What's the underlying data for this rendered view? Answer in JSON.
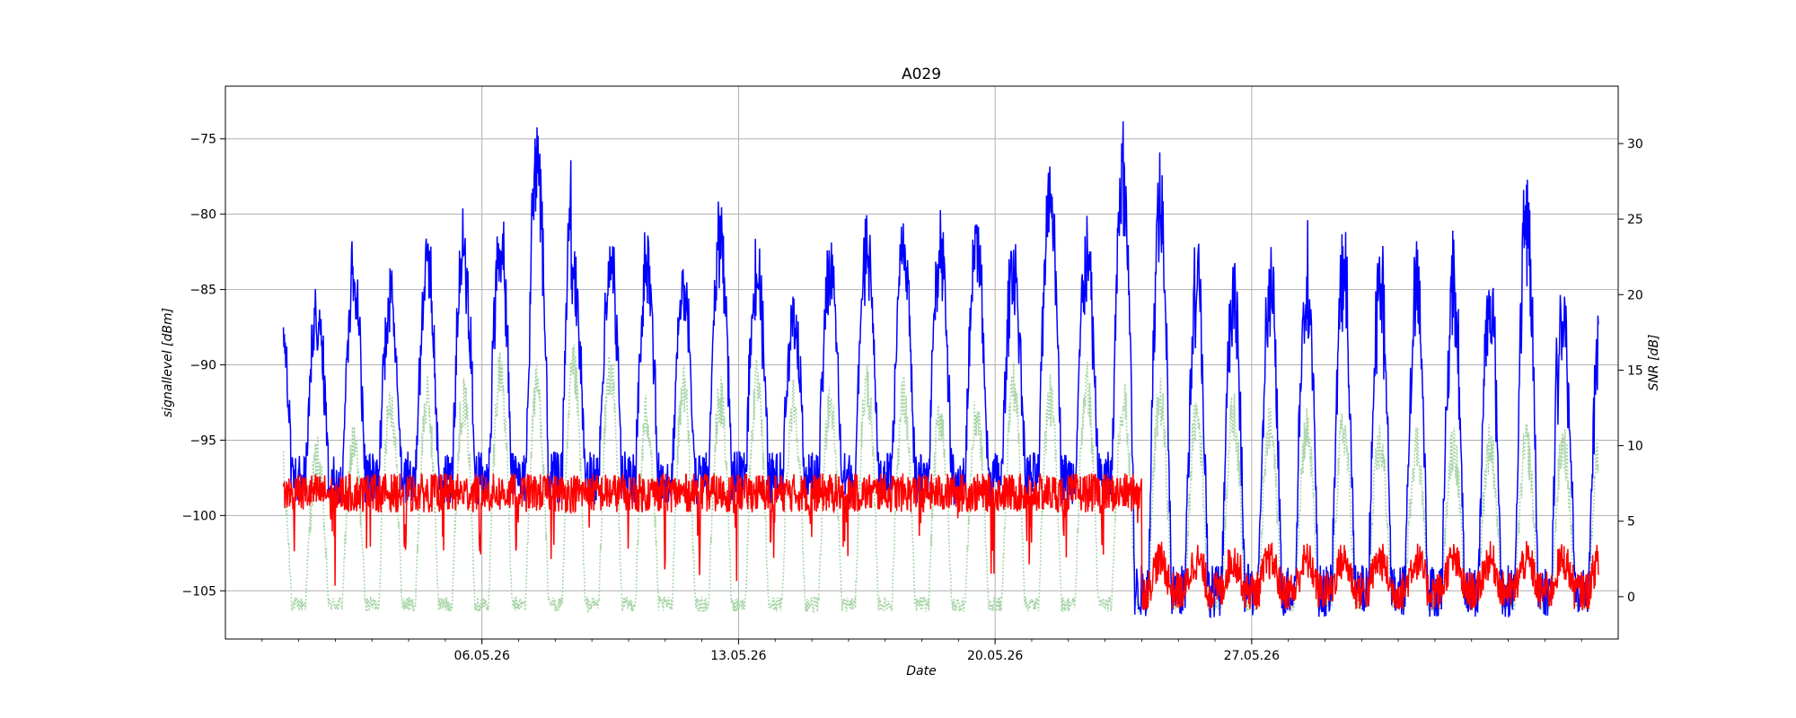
{
  "chart_data": {
    "type": "line",
    "title": "A029",
    "xlabel": "Date",
    "ylabel_left": "signallevel [dBm]",
    "ylabel_right": "SNR [dB]",
    "xlim": [
      "2026-04-29",
      "2026-06-06"
    ],
    "ylim_left": [
      -108.2,
      -71.5
    ],
    "ylim_right": [
      -2.8,
      33.8
    ],
    "x_ticks": [
      {
        "date": "2026-05-06",
        "label": "06.05.26"
      },
      {
        "date": "2026-05-13",
        "label": "13.05.26"
      },
      {
        "date": "2026-05-20",
        "label": "20.05.26"
      },
      {
        "date": "2026-05-27",
        "label": "27.05.26"
      }
    ],
    "y_ticks_left": [
      -75,
      -80,
      -85,
      -90,
      -95,
      -100,
      -105
    ],
    "y_ticks_right": [
      30,
      25,
      20,
      15,
      10,
      5,
      0
    ],
    "grid": true,
    "x_range_data": [
      "2026-04-30 14:00",
      "2026-06-05 11:00"
    ],
    "series": [
      {
        "axis": "right",
        "color": "#a8d5a8",
        "style": "dotted",
        "daily_peaks_dB": [
          9,
          10,
          13,
          13,
          13,
          15,
          14,
          15,
          15,
          12,
          14,
          13,
          14,
          13,
          13,
          14,
          13,
          12,
          12,
          14,
          13,
          14,
          13,
          13,
          12,
          12,
          11,
          11,
          11,
          10,
          10,
          10,
          10,
          10,
          10,
          10
        ],
        "night_floor_dB": -0.5
      },
      {
        "axis": "left",
        "color": "#0000ff",
        "style": "solid",
        "daily_peaks_dBm": [
          -85.5,
          -82,
          -83.5,
          -81.5,
          -80.8,
          -80,
          -73.2,
          -82.5,
          -81,
          -83.5,
          -79.3,
          -82,
          -85.3,
          -81.5,
          -80,
          -80,
          -79.8,
          -81.5,
          -75.5,
          -81,
          -73.3,
          -75,
          -81,
          -83,
          -81.5,
          -81,
          -81.5,
          -82,
          -82,
          -82.8,
          -76.8,
          -85
        ],
        "night_floor_dBm": -97.5,
        "late_night_floor_dBm": -105
      },
      {
        "axis": "left",
        "color": "#ff0000",
        "style": "solid",
        "baseline_dBm": -98.5,
        "late_baseline_dBm": -105,
        "dips_to_dBm": -103.5
      }
    ]
  }
}
